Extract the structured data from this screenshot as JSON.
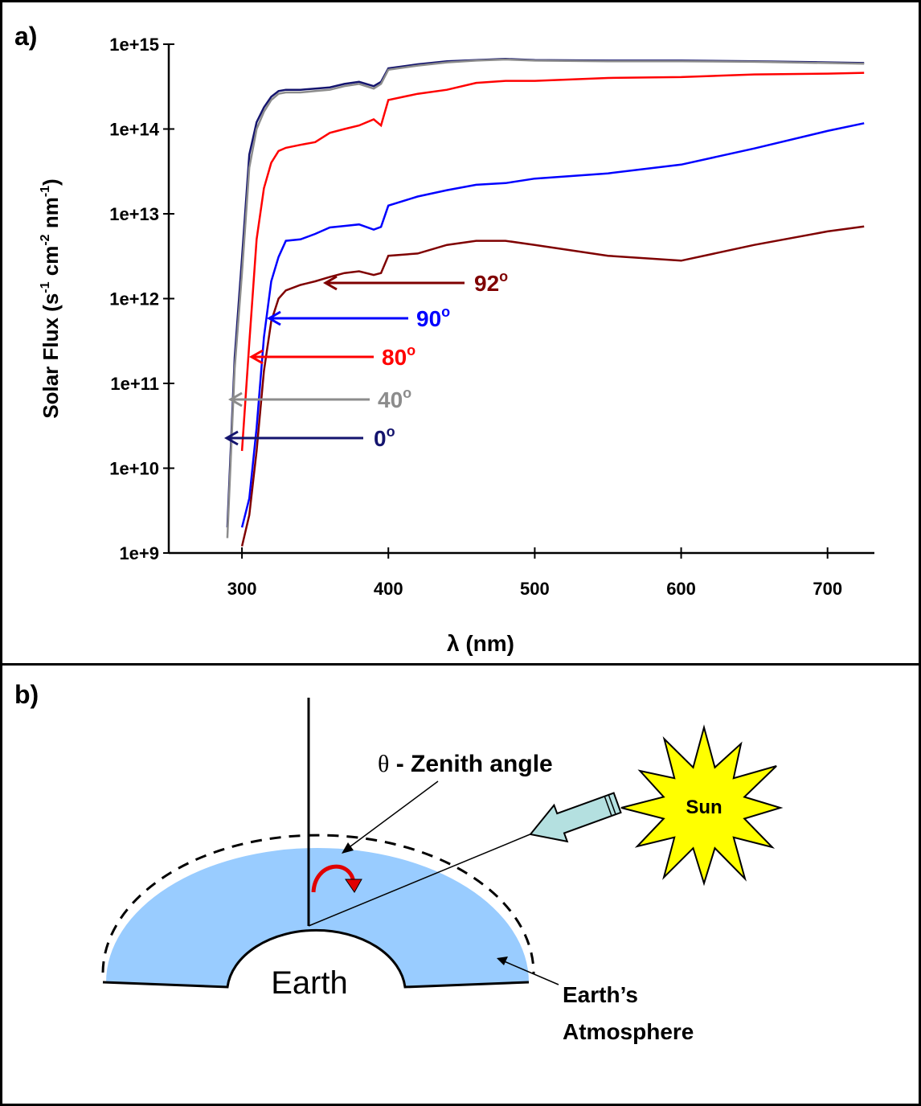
{
  "chart_data": {
    "type": "line",
    "panel_label": "a)",
    "xlabel": "λ (nm)",
    "ylabel_parts": [
      "Solar Flux (s",
      "-1",
      " cm",
      "-2",
      " nm",
      "-1",
      ")"
    ],
    "log_y": true,
    "xlim": [
      250,
      732
    ],
    "ylim": [
      1000000000.0,
      1000000000000000.0
    ],
    "xticks": [
      300,
      400,
      500,
      600,
      700
    ],
    "yticks": [
      {
        "value": 1000000000.0,
        "label": "1e+9"
      },
      {
        "value": 10000000000.0,
        "label": "1e+10"
      },
      {
        "value": 100000000000.0,
        "label": "1e+11"
      },
      {
        "value": 1000000000000.0,
        "label": "1e+12"
      },
      {
        "value": 10000000000000.0,
        "label": "1e+13"
      },
      {
        "value": 100000000000000.0,
        "label": "1e+14"
      },
      {
        "value": 1000000000000000.0,
        "label": "1e+15"
      }
    ],
    "degree_mark": "o",
    "x": [
      290,
      295,
      300,
      305,
      310,
      315,
      320,
      325,
      330,
      340,
      350,
      360,
      370,
      380,
      390,
      395,
      400,
      420,
      440,
      460,
      480,
      500,
      550,
      600,
      650,
      700,
      725
    ],
    "series": [
      {
        "name": "0",
        "color": "#14146e",
        "values": [
          2000000000.0,
          200000000000.0,
          3000000000000.0,
          50000000000000.0,
          120000000000000.0,
          180000000000000.0,
          240000000000000.0,
          280000000000000.0,
          290000000000000.0,
          290000000000000.0,
          300000000000000.0,
          310000000000000.0,
          340000000000000.0,
          360000000000000.0,
          320000000000000.0,
          360000000000000.0,
          520000000000000.0,
          580000000000000.0,
          630000000000000.0,
          650000000000000.0,
          670000000000000.0,
          650000000000000.0,
          640000000000000.0,
          640000000000000.0,
          630000000000000.0,
          610000000000000.0,
          600000000000000.0
        ]
      },
      {
        "name": "40",
        "color": "#8c8c8c",
        "values": [
          1500000000.0,
          150000000000.0,
          2000000000000.0,
          35000000000000.0,
          100000000000000.0,
          160000000000000.0,
          220000000000000.0,
          260000000000000.0,
          270000000000000.0,
          270000000000000.0,
          280000000000000.0,
          290000000000000.0,
          320000000000000.0,
          340000000000000.0,
          300000000000000.0,
          340000000000000.0,
          500000000000000.0,
          560000000000000.0,
          610000000000000.0,
          640000000000000.0,
          660000000000000.0,
          640000000000000.0,
          630000000000000.0,
          630000000000000.0,
          620000000000000.0,
          600000000000000.0,
          590000000000000.0
        ]
      },
      {
        "name": "80",
        "color": "#ff0000",
        "values": [
          null,
          null,
          16000000000.0,
          300000000000.0,
          5000000000000.0,
          20000000000000.0,
          40000000000000.0,
          55000000000000.0,
          60000000000000.0,
          65000000000000.0,
          70000000000000.0,
          90000000000000.0,
          100000000000000.0,
          110000000000000.0,
          130000000000000.0,
          110000000000000.0,
          220000000000000.0,
          260000000000000.0,
          290000000000000.0,
          350000000000000.0,
          370000000000000.0,
          370000000000000.0,
          400000000000000.0,
          410000000000000.0,
          440000000000000.0,
          450000000000000.0,
          460000000000000.0
        ]
      },
      {
        "name": "90",
        "color": "#0000ff",
        "values": [
          null,
          null,
          2000000000.0,
          4400000000.0,
          30000000000.0,
          350000000000.0,
          1600000000000.0,
          3100000000000.0,
          4800000000000.0,
          5000000000000.0,
          5800000000000.0,
          6900000000000.0,
          7200000000000.0,
          7500000000000.0,
          6500000000000.0,
          7000000000000.0,
          12500000000000.0,
          16000000000000.0,
          19000000000000.0,
          22000000000000.0,
          23000000000000.0,
          26000000000000.0,
          30000000000000.0,
          38000000000000.0,
          59000000000000.0,
          95000000000000.0,
          117000000000000.0
        ]
      },
      {
        "name": "92",
        "color": "#7f0000",
        "values": [
          null,
          null,
          1200000000.0,
          2800000000.0,
          16000000000.0,
          140000000000.0,
          540000000000.0,
          1000000000000.0,
          1250000000000.0,
          1450000000000.0,
          1600000000000.0,
          1800000000000.0,
          2000000000000.0,
          2100000000000.0,
          1900000000000.0,
          2000000000000.0,
          3200000000000.0,
          3400000000000.0,
          4300000000000.0,
          4800000000000.0,
          4800000000000.0,
          4300000000000.0,
          3200000000000.0,
          2800000000000.0,
          4300000000000.0,
          6200000000000.0,
          7100000000000.0
        ]
      }
    ]
  },
  "diagram": {
    "panel_label": "b)",
    "zenith_symbol": "θ",
    "zenith_label": " - Zenith angle",
    "sun": "Sun",
    "earth": "Earth",
    "atmosphere_lines": [
      "Earth’s",
      "Atmosphere"
    ]
  }
}
